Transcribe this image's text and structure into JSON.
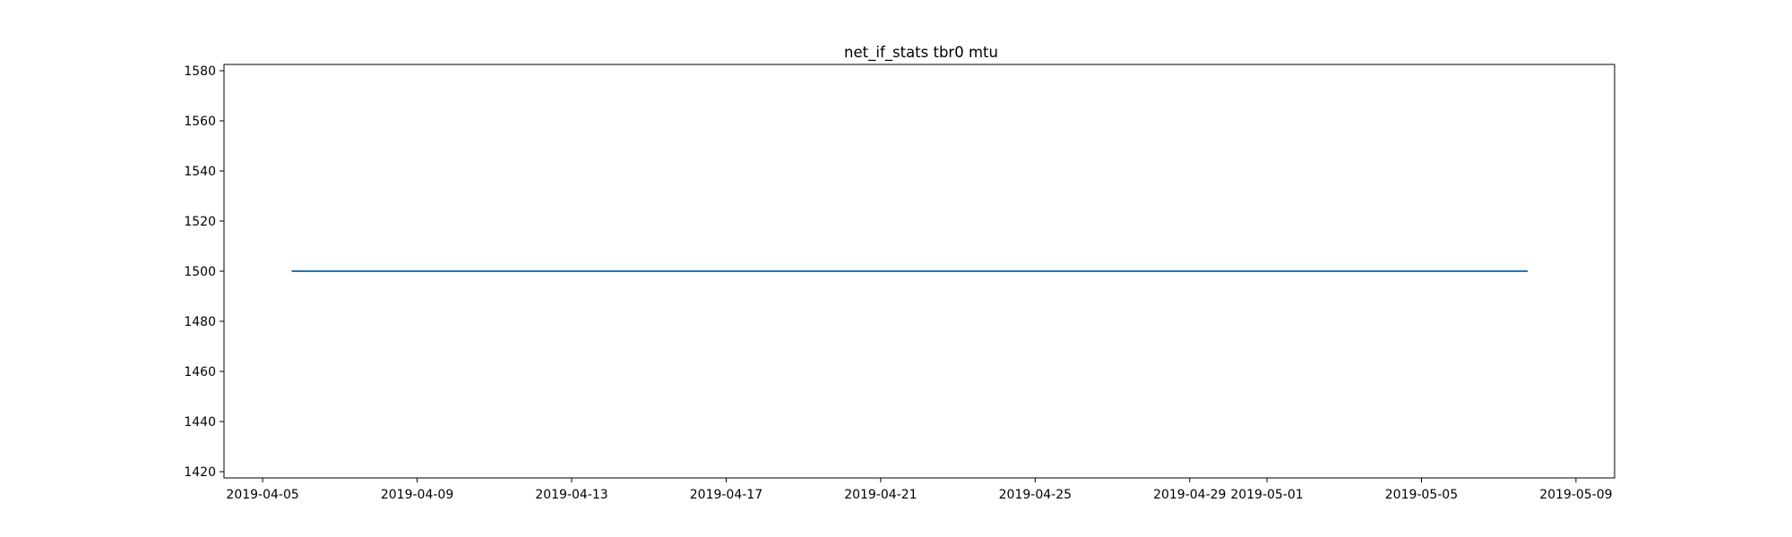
{
  "chart_data": {
    "type": "line",
    "title": "net_if_stats tbr0 mtu",
    "xlabel": "",
    "ylabel": "",
    "x_type": "date",
    "xlim": [
      "2019-04-04T00:00:00",
      "2019-05-10T00:00:00"
    ],
    "ylim": [
      1417.5,
      1582.5
    ],
    "grid": false,
    "legend": "none",
    "x_ticks": [
      "2019-04-05",
      "2019-04-09",
      "2019-04-13",
      "2019-04-17",
      "2019-04-21",
      "2019-04-25",
      "2019-04-29",
      "2019-05-01",
      "2019-05-05",
      "2019-05-09"
    ],
    "y_ticks": [
      1420,
      1440,
      1460,
      1480,
      1500,
      1520,
      1540,
      1560,
      1580
    ],
    "series": [
      {
        "color": "#1f77b4",
        "x": [
          "2019-04-05T18:00:00",
          "2019-05-07T18:00:00"
        ],
        "values": [
          1500,
          1500
        ]
      }
    ]
  }
}
